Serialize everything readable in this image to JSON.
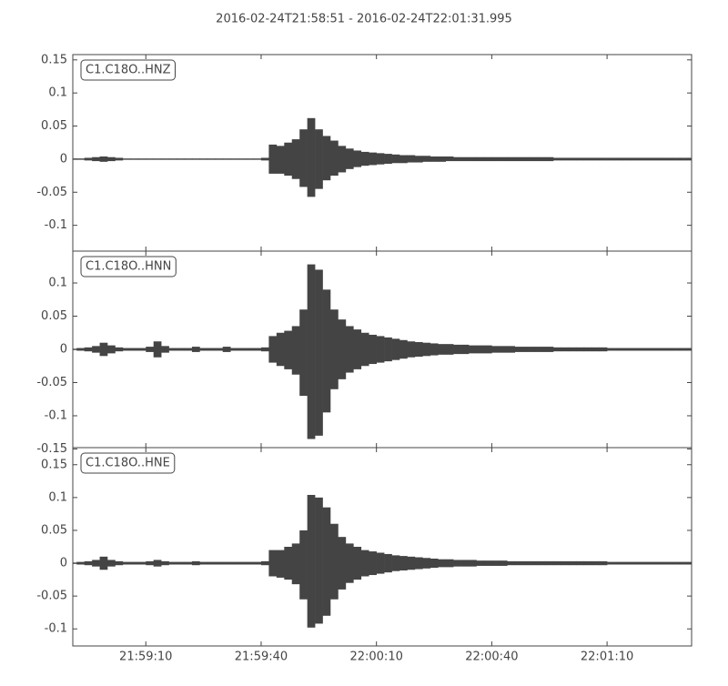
{
  "title": "2016-02-24T21:58:51  -  2016-02-24T22:01:31.995",
  "chart_data": [
    {
      "type": "waveform",
      "label": "C1.C18O..HNZ",
      "color": "#444444",
      "xlim": [
        0,
        160.995
      ],
      "ylim": [
        -0.139,
        0.158
      ],
      "yticks": [
        -0.1,
        -0.05,
        0.0,
        0.05,
        0.1,
        0.15
      ],
      "x": [
        0,
        2,
        4,
        6,
        8,
        10,
        12,
        14,
        16,
        18,
        20,
        22,
        24,
        26,
        28,
        30,
        32,
        34,
        36,
        38,
        40,
        42,
        44,
        46,
        48,
        50,
        52,
        54,
        56,
        58,
        60,
        62,
        64,
        66,
        68,
        70,
        72,
        74,
        76,
        78,
        80,
        82,
        84,
        86,
        88,
        90,
        92,
        94,
        96,
        98,
        100,
        102,
        104,
        106,
        108,
        110,
        112,
        114,
        116,
        118,
        120,
        122,
        124,
        126,
        128,
        130,
        132,
        134,
        136,
        138,
        140,
        142,
        144,
        146,
        148,
        150,
        152,
        154,
        156,
        158,
        160
      ],
      "series": [
        {
          "values": [
            0.001,
            0.001,
            0.002,
            0.003,
            0.004,
            0.003,
            0.002,
            0.001,
            0.001,
            0.001,
            0.001,
            0.001,
            0.001,
            0.001,
            0.001,
            0.001,
            0.001,
            0.001,
            0.001,
            0.001,
            0.001,
            0.001,
            0.001,
            0.001,
            0.001,
            0.002,
            0.022,
            0.02,
            0.025,
            0.03,
            0.045,
            0.062,
            0.045,
            0.035,
            0.028,
            0.02,
            0.016,
            0.013,
            0.011,
            0.01,
            0.009,
            0.008,
            0.007,
            0.006,
            0.006,
            0.005,
            0.005,
            0.004,
            0.004,
            0.004,
            0.003,
            0.003,
            0.003,
            0.003,
            0.003,
            0.003,
            0.003,
            0.003,
            0.003,
            0.003,
            0.003,
            0.003,
            0.003,
            0.002,
            0.002,
            0.002,
            0.002,
            0.002,
            0.002,
            0.002,
            0.002,
            0.002,
            0.002,
            0.002,
            0.002,
            0.002,
            0.002,
            0.002,
            0.002,
            0.002,
            0.002
          ]
        },
        {
          "values": [
            -0.001,
            -0.001,
            -0.002,
            -0.003,
            -0.004,
            -0.003,
            -0.002,
            -0.001,
            -0.001,
            -0.001,
            -0.001,
            -0.001,
            -0.001,
            -0.001,
            -0.001,
            -0.001,
            -0.001,
            -0.001,
            -0.001,
            -0.001,
            -0.001,
            -0.001,
            -0.001,
            -0.001,
            -0.001,
            -0.002,
            -0.022,
            -0.022,
            -0.025,
            -0.03,
            -0.042,
            -0.057,
            -0.045,
            -0.032,
            -0.025,
            -0.02,
            -0.015,
            -0.012,
            -0.01,
            -0.009,
            -0.008,
            -0.007,
            -0.006,
            -0.006,
            -0.005,
            -0.005,
            -0.004,
            -0.004,
            -0.004,
            -0.003,
            -0.003,
            -0.003,
            -0.003,
            -0.003,
            -0.003,
            -0.003,
            -0.003,
            -0.003,
            -0.003,
            -0.003,
            -0.003,
            -0.003,
            -0.003,
            -0.002,
            -0.002,
            -0.002,
            -0.002,
            -0.002,
            -0.002,
            -0.002,
            -0.002,
            -0.002,
            -0.002,
            -0.002,
            -0.002,
            -0.002,
            -0.002,
            -0.002,
            -0.002,
            -0.002,
            -0.002
          ]
        }
      ]
    },
    {
      "type": "waveform",
      "label": "C1.C18O..HNN",
      "color": "#444444",
      "xlim": [
        0,
        160.995
      ],
      "ylim": [
        -0.148,
        0.148
      ],
      "yticks": [
        -0.15,
        -0.1,
        -0.05,
        0.0,
        0.05,
        0.1
      ],
      "x": [
        0,
        2,
        4,
        6,
        8,
        10,
        12,
        14,
        16,
        18,
        20,
        22,
        24,
        26,
        28,
        30,
        32,
        34,
        36,
        38,
        40,
        42,
        44,
        46,
        48,
        50,
        52,
        54,
        56,
        58,
        60,
        62,
        64,
        66,
        68,
        70,
        72,
        74,
        76,
        78,
        80,
        82,
        84,
        86,
        88,
        90,
        92,
        94,
        96,
        98,
        100,
        102,
        104,
        106,
        108,
        110,
        112,
        114,
        116,
        118,
        120,
        122,
        124,
        126,
        128,
        130,
        132,
        134,
        136,
        138,
        140,
        142,
        144,
        146,
        148,
        150,
        152,
        154,
        156,
        158,
        160
      ],
      "series": [
        {
          "values": [
            0.001,
            0.002,
            0.003,
            0.005,
            0.01,
            0.006,
            0.003,
            0.002,
            0.002,
            0.002,
            0.004,
            0.012,
            0.005,
            0.002,
            0.002,
            0.002,
            0.004,
            0.002,
            0.002,
            0.002,
            0.004,
            0.002,
            0.002,
            0.002,
            0.002,
            0.003,
            0.02,
            0.025,
            0.028,
            0.035,
            0.06,
            0.128,
            0.12,
            0.09,
            0.06,
            0.045,
            0.035,
            0.03,
            0.025,
            0.022,
            0.02,
            0.018,
            0.016,
            0.014,
            0.012,
            0.011,
            0.01,
            0.009,
            0.008,
            0.008,
            0.007,
            0.007,
            0.006,
            0.006,
            0.006,
            0.005,
            0.005,
            0.005,
            0.004,
            0.004,
            0.004,
            0.004,
            0.004,
            0.003,
            0.003,
            0.003,
            0.003,
            0.003,
            0.003,
            0.003,
            0.002,
            0.002,
            0.002,
            0.002,
            0.002,
            0.002,
            0.002,
            0.002,
            0.002,
            0.002,
            0.002
          ]
        },
        {
          "values": [
            -0.001,
            -0.002,
            -0.003,
            -0.005,
            -0.01,
            -0.006,
            -0.003,
            -0.002,
            -0.002,
            -0.002,
            -0.004,
            -0.012,
            -0.005,
            -0.002,
            -0.002,
            -0.002,
            -0.004,
            -0.002,
            -0.002,
            -0.002,
            -0.004,
            -0.002,
            -0.002,
            -0.002,
            -0.002,
            -0.003,
            -0.02,
            -0.025,
            -0.03,
            -0.038,
            -0.07,
            -0.135,
            -0.13,
            -0.095,
            -0.06,
            -0.045,
            -0.035,
            -0.03,
            -0.025,
            -0.022,
            -0.02,
            -0.018,
            -0.016,
            -0.014,
            -0.012,
            -0.011,
            -0.01,
            -0.009,
            -0.008,
            -0.008,
            -0.007,
            -0.007,
            -0.006,
            -0.006,
            -0.006,
            -0.005,
            -0.005,
            -0.005,
            -0.004,
            -0.004,
            -0.004,
            -0.004,
            -0.004,
            -0.003,
            -0.003,
            -0.003,
            -0.003,
            -0.003,
            -0.003,
            -0.003,
            -0.002,
            -0.002,
            -0.002,
            -0.002,
            -0.002,
            -0.002,
            -0.002,
            -0.002,
            -0.002,
            -0.002,
            -0.002
          ]
        }
      ]
    },
    {
      "type": "waveform",
      "label": "C1.C18O..HNE",
      "color": "#444444",
      "xlim": [
        0,
        160.995
      ],
      "ylim": [
        -0.126,
        0.176
      ],
      "yticks": [
        -0.1,
        -0.05,
        0.0,
        0.05,
        0.1,
        0.15
      ],
      "xticks": [
        {
          "value": 19,
          "label": "21:59:10"
        },
        {
          "value": 49,
          "label": "21:59:40"
        },
        {
          "value": 79,
          "label": "22:00:10"
        },
        {
          "value": 109,
          "label": "22:00:40"
        },
        {
          "value": 139,
          "label": "22:01:10"
        }
      ],
      "x": [
        0,
        2,
        4,
        6,
        8,
        10,
        12,
        14,
        16,
        18,
        20,
        22,
        24,
        26,
        28,
        30,
        32,
        34,
        36,
        38,
        40,
        42,
        44,
        46,
        48,
        50,
        52,
        54,
        56,
        58,
        60,
        62,
        64,
        66,
        68,
        70,
        72,
        74,
        76,
        78,
        80,
        82,
        84,
        86,
        88,
        90,
        92,
        94,
        96,
        98,
        100,
        102,
        104,
        106,
        108,
        110,
        112,
        114,
        116,
        118,
        120,
        122,
        124,
        126,
        128,
        130,
        132,
        134,
        136,
        138,
        140,
        142,
        144,
        146,
        148,
        150,
        152,
        154,
        156,
        158,
        160
      ],
      "series": [
        {
          "values": [
            0.001,
            0.002,
            0.003,
            0.005,
            0.01,
            0.005,
            0.003,
            0.002,
            0.002,
            0.002,
            0.003,
            0.005,
            0.003,
            0.002,
            0.002,
            0.002,
            0.003,
            0.002,
            0.002,
            0.002,
            0.002,
            0.002,
            0.002,
            0.002,
            0.002,
            0.003,
            0.02,
            0.02,
            0.025,
            0.03,
            0.05,
            0.104,
            0.1,
            0.085,
            0.06,
            0.04,
            0.03,
            0.025,
            0.02,
            0.018,
            0.016,
            0.014,
            0.012,
            0.011,
            0.01,
            0.009,
            0.008,
            0.007,
            0.006,
            0.006,
            0.005,
            0.005,
            0.005,
            0.004,
            0.004,
            0.004,
            0.004,
            0.003,
            0.003,
            0.003,
            0.003,
            0.003,
            0.003,
            0.003,
            0.003,
            0.003,
            0.003,
            0.003,
            0.003,
            0.003,
            0.002,
            0.002,
            0.002,
            0.002,
            0.002,
            0.002,
            0.002,
            0.002,
            0.002,
            0.002,
            0.002
          ]
        },
        {
          "values": [
            -0.001,
            -0.002,
            -0.003,
            -0.005,
            -0.01,
            -0.005,
            -0.003,
            -0.002,
            -0.002,
            -0.002,
            -0.003,
            -0.005,
            -0.003,
            -0.002,
            -0.002,
            -0.002,
            -0.003,
            -0.002,
            -0.002,
            -0.002,
            -0.002,
            -0.002,
            -0.002,
            -0.002,
            -0.002,
            -0.003,
            -0.02,
            -0.022,
            -0.025,
            -0.032,
            -0.055,
            -0.098,
            -0.092,
            -0.08,
            -0.055,
            -0.04,
            -0.03,
            -0.025,
            -0.02,
            -0.018,
            -0.016,
            -0.014,
            -0.012,
            -0.011,
            -0.01,
            -0.009,
            -0.008,
            -0.007,
            -0.006,
            -0.006,
            -0.005,
            -0.005,
            -0.005,
            -0.004,
            -0.004,
            -0.004,
            -0.004,
            -0.003,
            -0.003,
            -0.003,
            -0.003,
            -0.003,
            -0.003,
            -0.003,
            -0.003,
            -0.003,
            -0.003,
            -0.003,
            -0.003,
            -0.003,
            -0.002,
            -0.002,
            -0.002,
            -0.002,
            -0.002,
            -0.002,
            -0.002,
            -0.002,
            -0.002,
            -0.002,
            -0.002
          ]
        }
      ]
    }
  ]
}
